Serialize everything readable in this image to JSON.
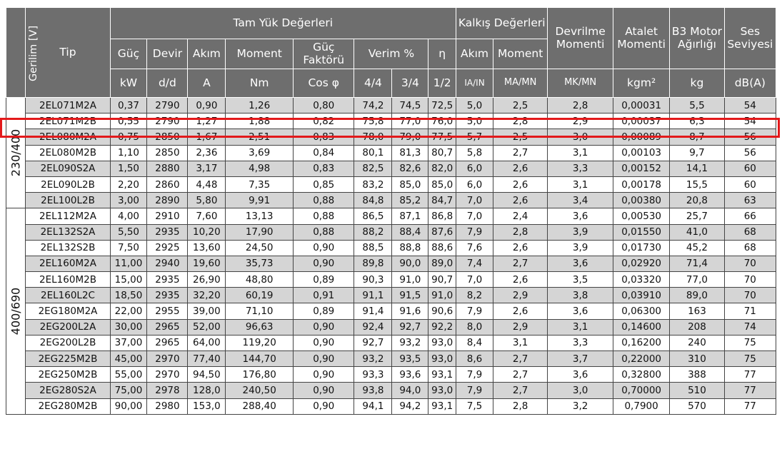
{
  "header": {
    "gerilim": "Gerilim [V]",
    "tip": "Tip",
    "tam_yuk": "Tam Yük Değerleri",
    "kalkis": "Kalkış Değerleri",
    "devrilme": "Devrilme Momenti",
    "atalet": "Atalet Momenti",
    "b3": "B3 Motor Ağırlığı",
    "ses": "Ses Seviyesi",
    "guc": "Güç",
    "devir": "Devir",
    "akim": "Akım",
    "moment": "Moment",
    "guc_faktoru": "Güç Faktörü",
    "verim": "Verim %",
    "eta": "η",
    "kalkis_akim": "Akım",
    "kalkis_moment": "Moment",
    "u_kw": "kW",
    "u_dd": "d/d",
    "u_a": "A",
    "u_nm": "Nm",
    "u_cos": "Cos φ",
    "u_44": "4/4",
    "u_34": "3/4",
    "u_12": "1/2",
    "u_iain": "IA/IN",
    "u_mamn": "MA/MN",
    "u_mkmn": "MK/MN",
    "u_kgm2": "kgm²",
    "u_kg": "kg",
    "u_dba": "dB(A)"
  },
  "groups": [
    {
      "voltage": "230/400"
    },
    {
      "voltage": "400/690"
    }
  ],
  "rows": [
    [
      "2EL071M2A",
      "0,37",
      "2790",
      "0,90",
      "1,26",
      "0,80",
      "74,2",
      "74,5",
      "72,5",
      "5,0",
      "2,5",
      "2,8",
      "0,00031",
      "5,5",
      "54"
    ],
    [
      "2EL071M2B",
      "0,55",
      "2790",
      "1,27",
      "1,88",
      "0,82",
      "75,8",
      "77,0",
      "76,0",
      "5,0",
      "2,8",
      "2,9",
      "0,00037",
      "6,3",
      "54"
    ],
    [
      "2EL080M2A",
      "0,75",
      "2850",
      "1,67",
      "2,51",
      "0,83",
      "78,0",
      "79,0",
      "77,5",
      "5,7",
      "2,5",
      "3,0",
      "0,00089",
      "8,7",
      "56"
    ],
    [
      "2EL080M2B",
      "1,10",
      "2850",
      "2,36",
      "3,69",
      "0,84",
      "80,1",
      "81,3",
      "80,7",
      "5,8",
      "2,7",
      "3,1",
      "0,00103",
      "9,7",
      "56"
    ],
    [
      "2EL090S2A",
      "1,50",
      "2880",
      "3,17",
      "4,98",
      "0,83",
      "82,5",
      "82,6",
      "82,0",
      "6,0",
      "2,6",
      "3,3",
      "0,00152",
      "14,1",
      "60"
    ],
    [
      "2EL090L2B",
      "2,20",
      "2860",
      "4,48",
      "7,35",
      "0,85",
      "83,2",
      "85,0",
      "85,0",
      "6,0",
      "2,6",
      "3,1",
      "0,00178",
      "15,5",
      "60"
    ],
    [
      "2EL100L2B",
      "3,00",
      "2890",
      "5,80",
      "9,91",
      "0,88",
      "84,8",
      "85,2",
      "84,7",
      "7,0",
      "2,6",
      "3,4",
      "0,00380",
      "20,8",
      "63"
    ],
    [
      "2EL112M2A",
      "4,00",
      "2910",
      "7,60",
      "13,13",
      "0,88",
      "86,5",
      "87,1",
      "86,8",
      "7,0",
      "2,4",
      "3,6",
      "0,00530",
      "25,7",
      "66"
    ],
    [
      "2EL132S2A",
      "5,50",
      "2935",
      "10,20",
      "17,90",
      "0,88",
      "88,2",
      "88,4",
      "87,6",
      "7,9",
      "2,8",
      "3,9",
      "0,01550",
      "41,0",
      "68"
    ],
    [
      "2EL132S2B",
      "7,50",
      "2925",
      "13,60",
      "24,50",
      "0,90",
      "88,5",
      "88,8",
      "88,6",
      "7,6",
      "2,6",
      "3,9",
      "0,01730",
      "45,2",
      "68"
    ],
    [
      "2EL160M2A",
      "11,00",
      "2940",
      "19,60",
      "35,73",
      "0,90",
      "89,8",
      "90,0",
      "89,0",
      "7,4",
      "2,7",
      "3,6",
      "0,02920",
      "71,4",
      "70"
    ],
    [
      "2EL160M2B",
      "15,00",
      "2935",
      "26,90",
      "48,80",
      "0,89",
      "90,3",
      "91,0",
      "90,7",
      "7,0",
      "2,6",
      "3,5",
      "0,03320",
      "77,0",
      "70"
    ],
    [
      "2EL160L2C",
      "18,50",
      "2935",
      "32,20",
      "60,19",
      "0,91",
      "91,1",
      "91,5",
      "91,0",
      "8,2",
      "2,9",
      "3,8",
      "0,03910",
      "89,0",
      "70"
    ],
    [
      "2EG180M2A",
      "22,00",
      "2955",
      "39,00",
      "71,10",
      "0,89",
      "91,4",
      "91,6",
      "90,6",
      "7,9",
      "2,6",
      "3,6",
      "0,06300",
      "163",
      "71"
    ],
    [
      "2EG200L2A",
      "30,00",
      "2965",
      "52,00",
      "96,63",
      "0,90",
      "92,4",
      "92,7",
      "92,2",
      "8,0",
      "2,9",
      "3,1",
      "0,14600",
      "208",
      "74"
    ],
    [
      "2EG200L2B",
      "37,00",
      "2965",
      "64,00",
      "119,20",
      "0,90",
      "92,7",
      "93,2",
      "93,0",
      "8,4",
      "3,1",
      "3,3",
      "0,16200",
      "240",
      "75"
    ],
    [
      "2EG225M2B",
      "45,00",
      "2970",
      "77,40",
      "144,70",
      "0,90",
      "93,2",
      "93,5",
      "93,0",
      "8,6",
      "2,7",
      "3,7",
      "0,22000",
      "310",
      "75"
    ],
    [
      "2EG250M2B",
      "55,00",
      "2970",
      "94,50",
      "176,80",
      "0,90",
      "93,3",
      "93,6",
      "93,1",
      "7,9",
      "2,7",
      "3,6",
      "0,32800",
      "388",
      "77"
    ],
    [
      "2EG280S2A",
      "75,00",
      "2978",
      "128,0",
      "240,50",
      "0,90",
      "93,8",
      "94,0",
      "93,0",
      "7,9",
      "2,7",
      "3,0",
      "0,70000",
      "510",
      "77"
    ],
    [
      "2EG280M2B",
      "90,00",
      "2980",
      "153,0",
      "288,40",
      "0,90",
      "94,1",
      "94,2",
      "93,1",
      "7,5",
      "2,8",
      "3,2",
      "0,7900",
      "570",
      "77"
    ]
  ],
  "highlight_row": "2EL071M2B"
}
